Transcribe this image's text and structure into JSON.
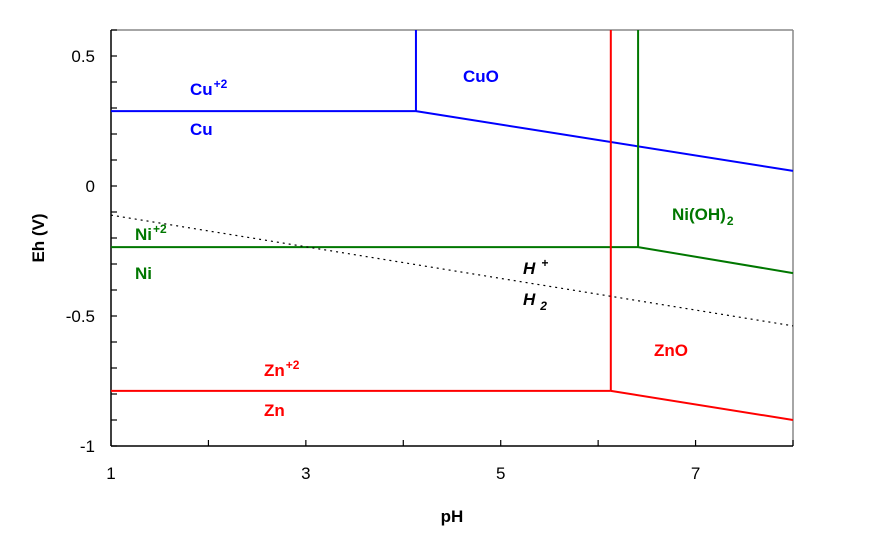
{
  "chart_data": {
    "type": "line",
    "title": "",
    "xlabel": "pH",
    "ylabel": "Eh (V)",
    "xlim": [
      1,
      8
    ],
    "ylim": [
      -1,
      0.6
    ],
    "x_ticks": [
      1,
      3,
      5,
      7
    ],
    "x_tick_labels": [
      "1",
      "3",
      "5",
      "7"
    ],
    "y_ticks": [
      0.5,
      0,
      -0.5,
      -1
    ],
    "y_tick_labels": [
      "0.5",
      "0",
      "-0.5",
      "-1"
    ],
    "grid": false,
    "series": [
      {
        "element": "Cu",
        "color": "#0000ff",
        "style": "solid",
        "segments": [
          [
            [
              1,
              0.288
            ],
            [
              4.13,
              0.288
            ]
          ],
          [
            [
              4.13,
              0.288
            ],
            [
              4.13,
              0.6
            ]
          ],
          [
            [
              4.13,
              0.288
            ],
            [
              8,
              0.058
            ]
          ]
        ]
      },
      {
        "element": "Ni",
        "color": "#007700",
        "style": "solid",
        "segments": [
          [
            [
              1,
              -0.235
            ],
            [
              6.41,
              -0.235
            ]
          ],
          [
            [
              6.41,
              -0.235
            ],
            [
              6.41,
              0.6
            ]
          ],
          [
            [
              6.41,
              -0.235
            ],
            [
              8,
              -0.335
            ]
          ]
        ]
      },
      {
        "element": "Zn",
        "color": "#ff0000",
        "style": "solid",
        "segments": [
          [
            [
              1,
              -0.788
            ],
            [
              6.13,
              -0.788
            ]
          ],
          [
            [
              6.13,
              -0.788
            ],
            [
              6.13,
              0.6
            ]
          ],
          [
            [
              6.13,
              -0.788
            ],
            [
              8,
              -0.9
            ]
          ]
        ]
      },
      {
        "element": "H",
        "color": "#000000",
        "style": "dotted",
        "segments": [
          [
            [
              1,
              -0.112
            ],
            [
              8,
              -0.538
            ]
          ]
        ]
      }
    ],
    "region_labels": [
      {
        "base": "Cu",
        "sup": "+2",
        "sub": "",
        "color": "#0000ff"
      },
      {
        "base": "Cu",
        "sup": "",
        "sub": "",
        "color": "#0000ff"
      },
      {
        "base": "CuO",
        "sup": "",
        "sub": "",
        "color": "#0000ff"
      },
      {
        "base": "Ni",
        "sup": "+2",
        "sub": "",
        "color": "#007700"
      },
      {
        "base": "Ni",
        "sup": "",
        "sub": "",
        "color": "#007700"
      },
      {
        "base": "Ni(OH)",
        "sup": "",
        "sub": "2",
        "color": "#007700"
      },
      {
        "base": "H",
        "sup": "+",
        "sub": "",
        "color": "#000000"
      },
      {
        "base": "H",
        "sup": "",
        "sub": "2",
        "color": "#000000"
      },
      {
        "base": "ZnO",
        "sup": "",
        "sub": "",
        "color": "#ff0000"
      },
      {
        "base": "Zn",
        "sup": "+2",
        "sub": "",
        "color": "#ff0000"
      },
      {
        "base": "Zn",
        "sup": "",
        "sub": "",
        "color": "#ff0000"
      }
    ]
  }
}
